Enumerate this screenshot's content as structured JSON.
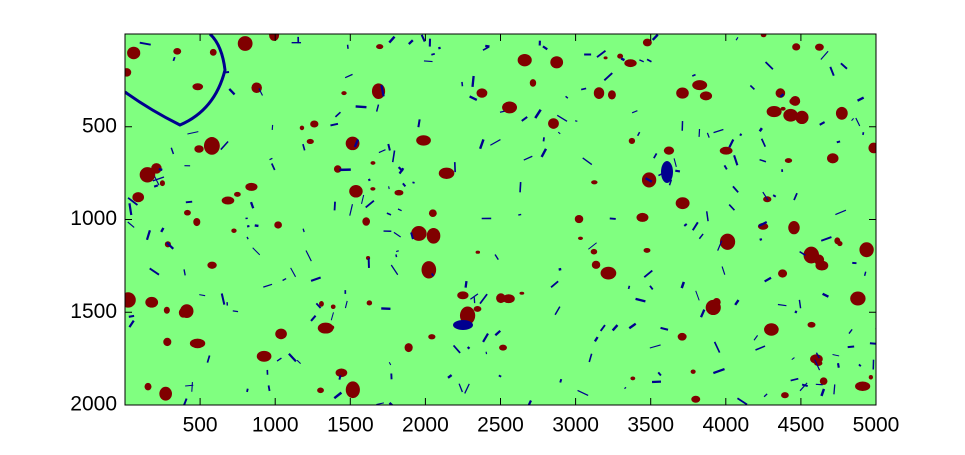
{
  "chart_data": {
    "type": "image",
    "xlim": [
      0,
      5000
    ],
    "ylim": [
      0,
      2000
    ],
    "y_reversed": true,
    "xticks": [
      500,
      1000,
      1500,
      2000,
      2500,
      3000,
      3500,
      4000,
      4500,
      5000
    ],
    "yticks": [
      500,
      1000,
      1500,
      2000
    ],
    "colormap": [
      "#00008f",
      "#80ff80",
      "#800000"
    ]
  }
}
